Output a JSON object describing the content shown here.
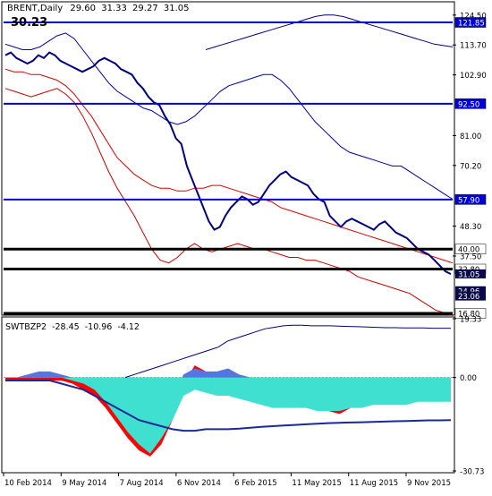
{
  "chart_data": [
    {
      "type": "line",
      "symbol": "BRENT,Daily",
      "ohlc": [
        "29.60",
        "31.33",
        "29.27",
        "31.05"
      ],
      "last_price": "30.23",
      "y_axis_ticks": [
        "124.50",
        "113.70",
        "102.90",
        "81.00",
        "70.20",
        "48.30",
        "37.50"
      ],
      "ylim": [
        16.8,
        128.0
      ],
      "level_lines": [
        {
          "value": 121.85,
          "label": "121.85",
          "color": "#0000dd"
        },
        {
          "value": 92.5,
          "label": "92.50",
          "color": "#0000dd"
        },
        {
          "value": 57.9,
          "label": "57.90",
          "color": "#0000dd"
        },
        {
          "value": 40.0,
          "label": "40.00",
          "color": "#000000"
        },
        {
          "value": 32.8,
          "label": "32.80",
          "color": "#000000"
        },
        {
          "value": 16.8,
          "label": "16.80",
          "color": "#000000"
        }
      ],
      "price_labels": [
        {
          "value": 31.05,
          "label": "31.05"
        },
        {
          "value": 24.96,
          "label": "24.96"
        },
        {
          "value": 23.06,
          "label": "23.06"
        }
      ],
      "series": [
        {
          "role": "price",
          "color": "#000080",
          "values": [
            110,
            111,
            109,
            108,
            107,
            108,
            110,
            109,
            111,
            110,
            108,
            107,
            106,
            105,
            104,
            105,
            106,
            108,
            109,
            108,
            107,
            105,
            104,
            103,
            100,
            98,
            95,
            93,
            92,
            88,
            85,
            80,
            78,
            70,
            65,
            60,
            55,
            50,
            47,
            48,
            52,
            55,
            57,
            59,
            58,
            56,
            57,
            60,
            63,
            65,
            67,
            68,
            66,
            65,
            64,
            63,
            60,
            58,
            57,
            52,
            50,
            48,
            50,
            51,
            50,
            49,
            48,
            47,
            49,
            50,
            48,
            46,
            45,
            44,
            42,
            40,
            39,
            38,
            36,
            34,
            32,
            31
          ]
        },
        {
          "role": "upper-band",
          "color": "#0000aa",
          "values": [
            114,
            113,
            112,
            112,
            113,
            115,
            117,
            118,
            116,
            112,
            108,
            104,
            100,
            97,
            95,
            93,
            91,
            90,
            88,
            86,
            85,
            86,
            88,
            91,
            94,
            97,
            99,
            100,
            101,
            102,
            103,
            103,
            101,
            98,
            94,
            90,
            86,
            83,
            80,
            77,
            75,
            74,
            73,
            72,
            71,
            70,
            70,
            68,
            66,
            64,
            62,
            60,
            58
          ]
        },
        {
          "role": "lower-band",
          "color": "#cc0000",
          "values": [
            98,
            97,
            96,
            95,
            96,
            97,
            98,
            96,
            93,
            88,
            82,
            75,
            68,
            62,
            57,
            52,
            46,
            40,
            36,
            35,
            37,
            40,
            42,
            40,
            39,
            40,
            41,
            42,
            41,
            40,
            40,
            39,
            38,
            37,
            37,
            36,
            36,
            35,
            34,
            33,
            32,
            30,
            29,
            28,
            27,
            26,
            25,
            24,
            22,
            20,
            18,
            17,
            16
          ]
        },
        {
          "role": "moving-average-red",
          "color": "#dd0000",
          "values": [
            105,
            104,
            104,
            103,
            103,
            102,
            101,
            99,
            96,
            92,
            88,
            83,
            78,
            73,
            70,
            67,
            65,
            63,
            62,
            62,
            61,
            61,
            62,
            62,
            63,
            63,
            62,
            61,
            60,
            59,
            58,
            57,
            55,
            54,
            53,
            52,
            51,
            50,
            49,
            48,
            47,
            46,
            45,
            44,
            43,
            42,
            41,
            40,
            39,
            38,
            37,
            36,
            35
          ]
        },
        {
          "role": "long-average-navy",
          "color": "#000080",
          "values": [
            112,
            113,
            114,
            115,
            116,
            117,
            118,
            119,
            120,
            121,
            122,
            123,
            124,
            124.5,
            124.5,
            124,
            123,
            122,
            121,
            120,
            119,
            118,
            117,
            116,
            115,
            114,
            113.5,
            113
          ]
        }
      ]
    },
    {
      "type": "area",
      "indicator": "SWTBZP2",
      "values_header": [
        "-28.45",
        "-10.96",
        "-4.12"
      ],
      "y_axis_ticks": [
        "19.33",
        "0.00",
        "-30.73"
      ],
      "ylim": [
        -30.73,
        19.33
      ],
      "series": [
        {
          "role": "red-fill",
          "color": "#ff0000",
          "values": [
            -1,
            -1,
            -1,
            -1,
            -1,
            -1,
            -2,
            -4,
            -6,
            -10,
            -15,
            -20,
            -24,
            -26,
            -22,
            -14,
            -2,
            4,
            2,
            -4,
            -4,
            -2,
            -3,
            -6,
            -8,
            -6,
            -7,
            -9,
            -10,
            -11,
            -12,
            -10,
            -9,
            -8,
            -7,
            -6,
            -5,
            -5,
            -6,
            -7,
            -8
          ]
        },
        {
          "role": "blue-fill",
          "color": "#5577dd",
          "values": [
            0,
            0,
            1,
            2,
            2,
            1,
            0,
            -1,
            -2,
            -3,
            -5,
            -8,
            -10,
            -12,
            -10,
            -6,
            1,
            3,
            2,
            2,
            3,
            1,
            0,
            -2,
            -3,
            -4,
            -3,
            -3,
            -4,
            -4,
            -5,
            -4,
            -3,
            -2,
            -3,
            -2,
            -1,
            -2,
            -2,
            -3,
            -4
          ]
        },
        {
          "role": "cyan-fill",
          "color": "#40e0d0",
          "values": [
            0,
            0,
            0,
            0,
            0,
            0,
            -1,
            -2,
            -4,
            -8,
            -13,
            -18,
            -22,
            -25,
            -20,
            -14,
            -6,
            -4,
            -5,
            -6,
            -6,
            -7,
            -8,
            -9,
            -10,
            -10,
            -10,
            -10,
            -11,
            -11,
            -11,
            -10,
            -10,
            -9,
            -9,
            -9,
            -9,
            -8,
            -8,
            -8,
            -8
          ]
        },
        {
          "role": "signal-line",
          "color": "#1a2a99",
          "values": [
            -1,
            -1,
            -1,
            -1,
            -1,
            -2,
            -3,
            -4,
            -6,
            -8,
            -10,
            -12,
            -14,
            -15,
            -16,
            -17,
            -17.5,
            -17.5,
            -17,
            -17,
            -17,
            -16.8,
            -16.5,
            -16.2,
            -16,
            -15.8,
            -15.6,
            -15.4,
            -15.2,
            -15,
            -14.9,
            -14.8,
            -14.7,
            -14.6,
            -14.5,
            -14.4,
            -14.3,
            -14.2,
            -14.1,
            -14.1,
            -14
          ]
        },
        {
          "role": "upper-envelope",
          "color": "#000080",
          "values": [
            0,
            1,
            2,
            3,
            4,
            5,
            6,
            7,
            8,
            9,
            10,
            12,
            13,
            14,
            15,
            16,
            16.5,
            17,
            17.2,
            17.2,
            17,
            17,
            17,
            16.9,
            16.8,
            16.7,
            16.6,
            16.5,
            16.4,
            16.4,
            16.3,
            16.3,
            16.3,
            16.2,
            16.2,
            16.2
          ]
        }
      ]
    }
  ],
  "x_axis_labels": [
    "10 Feb 2014",
    "9 May 2014",
    "7 Aug 2014",
    "6 Nov 2014",
    "6 Feb 2015",
    "11 May 2015",
    "11 Aug 2015",
    "9 Nov 2015"
  ],
  "colors": {
    "background": "#ffffff",
    "frame": "#000000",
    "level_blue": "#0000dd",
    "label_fill_dark": "#0a0a4a",
    "label_text": "#ffffff"
  }
}
